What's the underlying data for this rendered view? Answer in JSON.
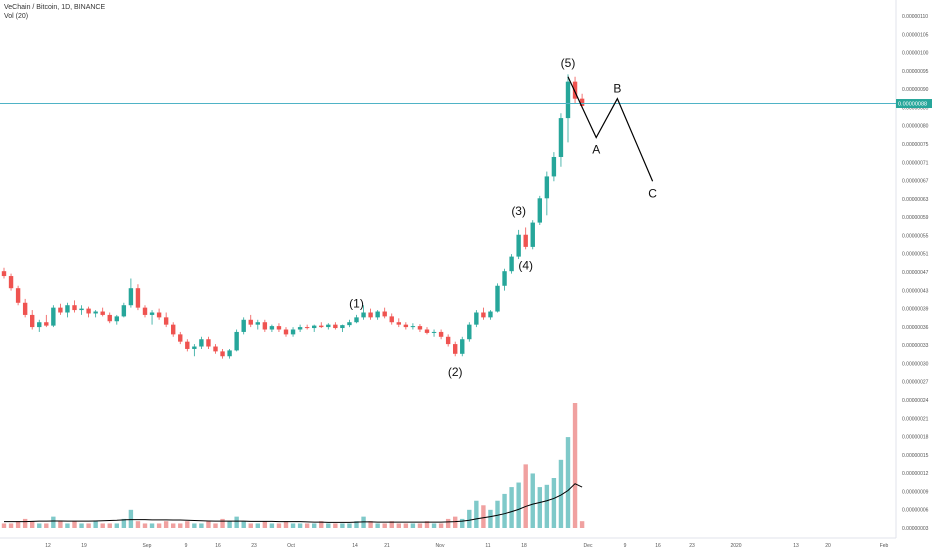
{
  "header": {
    "symbol_line": "VeChain / Bitcoin, 1D, BINANCE",
    "volume_line": "Vol (20)"
  },
  "colors": {
    "up": "#26a69a",
    "down": "#ef5350",
    "up_volume": "#7fc9c9",
    "down_volume": "#f0a1a0",
    "price_line": "#4fb3c6",
    "price_tag": "#26a69a",
    "wave_line": "#000000"
  },
  "chart_data": {
    "type": "candlestick",
    "price_axis": {
      "min": 3.3e-08,
      "max": 1.1e-07,
      "ticks": [
        "0.00000110",
        "0.00000105",
        "0.00000100",
        "0.00000095",
        "0.00000090",
        "0.00000085",
        "0.00000080",
        "0.00000075",
        "0.00000071",
        "0.00000067",
        "0.00000063",
        "0.00000059",
        "0.00000055",
        "0.00000051",
        "0.00000047",
        "0.00000043",
        "0.00000039",
        "0.00000036",
        "0.00000033",
        "0.00000030",
        "0.00000027",
        "0.00000024",
        "0.00000021",
        "0.00000018",
        "0.00000015",
        "0.00000012",
        "0.00000009",
        "0.00000006",
        "0.00000003"
      ]
    },
    "current_price": "0.00000088",
    "x_ticks": [
      "12",
      "19",
      "Sep",
      "9",
      "16",
      "23",
      "Oct",
      "14",
      "21",
      "Nov",
      "11",
      "18",
      "Dec",
      "9",
      "16",
      "23",
      "2020",
      "13",
      "20",
      "Feb"
    ],
    "candles": [
      [
        53.5,
        54.2,
        52.0,
        52.5
      ],
      [
        52.5,
        53.0,
        49.5,
        50.0
      ],
      [
        50.0,
        50.5,
        46.5,
        47.0
      ],
      [
        47.0,
        47.8,
        44.0,
        44.5
      ],
      [
        44.5,
        45.5,
        41.5,
        42.0
      ],
      [
        42.0,
        43.5,
        41.0,
        43.0
      ],
      [
        43.0,
        44.5,
        42.0,
        42.3
      ],
      [
        42.3,
        46.5,
        42.0,
        46.0
      ],
      [
        46.0,
        46.8,
        44.5,
        45.0
      ],
      [
        45.0,
        47.0,
        44.0,
        46.5
      ],
      [
        46.5,
        47.5,
        45.0,
        45.5
      ],
      [
        45.5,
        46.5,
        44.5,
        45.8
      ],
      [
        45.8,
        46.2,
        44.0,
        44.8
      ],
      [
        44.8,
        45.5,
        44.0,
        45.2
      ],
      [
        45.2,
        46.0,
        44.2,
        44.5
      ],
      [
        44.5,
        45.0,
        42.8,
        43.2
      ],
      [
        43.2,
        44.5,
        42.5,
        44.2
      ],
      [
        44.2,
        47.0,
        44.0,
        46.5
      ],
      [
        46.5,
        52.0,
        46.0,
        50.0
      ],
      [
        50.0,
        50.8,
        45.5,
        46.0
      ],
      [
        46.0,
        46.5,
        44.0,
        44.5
      ],
      [
        44.5,
        45.5,
        42.5,
        45.0
      ],
      [
        45.0,
        45.8,
        43.5,
        44.0
      ],
      [
        44.0,
        45.0,
        42.0,
        42.5
      ],
      [
        42.5,
        43.0,
        40.0,
        40.5
      ],
      [
        40.5,
        41.0,
        38.5,
        39.0
      ],
      [
        39.0,
        39.5,
        37.0,
        37.5
      ],
      [
        37.5,
        38.5,
        36.0,
        38.0
      ],
      [
        38.0,
        40.0,
        37.5,
        39.5
      ],
      [
        39.5,
        40.0,
        37.5,
        38.0
      ],
      [
        38.0,
        38.5,
        36.5,
        37.0
      ],
      [
        37.0,
        37.5,
        35.5,
        36.0
      ],
      [
        36.0,
        37.5,
        35.5,
        37.2
      ],
      [
        37.2,
        41.5,
        37.0,
        41.0
      ],
      [
        41.0,
        44.0,
        40.5,
        43.5
      ],
      [
        43.5,
        44.5,
        42.0,
        42.5
      ],
      [
        42.5,
        43.5,
        41.5,
        43.0
      ],
      [
        43.0,
        43.5,
        41.0,
        41.5
      ],
      [
        41.5,
        42.5,
        41.0,
        42.2
      ],
      [
        42.2,
        42.8,
        41.0,
        41.5
      ],
      [
        41.5,
        42.0,
        40.0,
        40.5
      ],
      [
        40.5,
        42.0,
        40.0,
        41.5
      ],
      [
        41.5,
        42.5,
        41.0,
        42.0
      ],
      [
        42.0,
        42.5,
        41.5,
        41.8
      ],
      [
        41.8,
        42.5,
        41.0,
        42.3
      ],
      [
        42.3,
        43.0,
        41.8,
        42.0
      ],
      [
        42.0,
        42.8,
        41.5,
        42.5
      ],
      [
        42.5,
        43.0,
        41.5,
        41.8
      ],
      [
        41.8,
        42.5,
        41.0,
        42.4
      ],
      [
        42.4,
        43.5,
        42.0,
        43.0
      ],
      [
        43.0,
        44.5,
        42.8,
        44.0
      ],
      [
        44.0,
        46.5,
        43.5,
        45.0
      ],
      [
        45.0,
        45.8,
        43.5,
        44.0
      ],
      [
        44.0,
        45.5,
        43.5,
        45.2
      ],
      [
        45.2,
        46.0,
        43.8,
        44.2
      ],
      [
        44.2,
        44.8,
        42.5,
        43.0
      ],
      [
        43.0,
        43.8,
        42.0,
        42.5
      ],
      [
        42.5,
        43.0,
        41.5,
        42.0
      ],
      [
        42.0,
        42.8,
        41.5,
        42.2
      ],
      [
        42.2,
        42.6,
        41.0,
        41.5
      ],
      [
        41.5,
        42.0,
        40.5,
        40.8
      ],
      [
        40.8,
        41.5,
        40.0,
        41.0
      ],
      [
        41.0,
        41.5,
        39.5,
        40.0
      ],
      [
        40.0,
        40.5,
        38.0,
        38.5
      ],
      [
        38.5,
        39.0,
        36.0,
        36.5
      ],
      [
        36.5,
        40.0,
        36.0,
        39.5
      ],
      [
        39.5,
        43.0,
        39.0,
        42.5
      ],
      [
        42.5,
        45.5,
        42.0,
        45.0
      ],
      [
        45.0,
        46.0,
        43.5,
        44.0
      ],
      [
        44.0,
        45.5,
        43.5,
        45.2
      ],
      [
        45.2,
        51.0,
        45.0,
        50.5
      ],
      [
        50.5,
        54.0,
        49.5,
        53.5
      ],
      [
        53.5,
        57.0,
        53.0,
        56.5
      ],
      [
        56.5,
        62.0,
        56.0,
        61.0
      ],
      [
        61.0,
        62.5,
        58.0,
        58.5
      ],
      [
        58.5,
        64.0,
        58.0,
        63.5
      ],
      [
        63.5,
        69.0,
        63.0,
        68.5
      ],
      [
        68.5,
        74.0,
        65.0,
        73.0
      ],
      [
        73.0,
        78.0,
        72.0,
        77.0
      ],
      [
        77.0,
        86.0,
        75.0,
        85.0
      ],
      [
        85.0,
        94.0,
        80.0,
        92.5
      ],
      [
        92.5,
        93.5,
        88.0,
        89.0
      ],
      [
        89.0,
        90.0,
        87.0,
        87.5
      ]
    ],
    "volume": [
      2,
      2,
      3,
      4,
      3,
      2,
      2,
      5,
      3,
      2,
      3,
      2,
      2,
      3,
      2,
      2,
      2,
      4,
      8,
      3,
      2,
      2,
      2,
      3,
      2,
      2,
      3,
      2,
      2,
      3,
      2,
      4,
      3,
      5,
      3,
      2,
      2,
      3,
      2,
      2,
      3,
      2,
      2,
      2,
      2,
      3,
      2,
      2,
      2,
      2,
      3,
      5,
      3,
      2,
      2,
      3,
      2,
      2,
      2,
      2,
      3,
      2,
      2,
      4,
      5,
      4,
      8,
      12,
      10,
      8,
      12,
      15,
      18,
      20,
      28,
      24,
      18,
      19,
      22,
      30,
      40,
      55,
      3
    ],
    "volume_ma": [
      2.8,
      2.8,
      2.8,
      2.8,
      2.9,
      3.0,
      3.0,
      3.1,
      3.1,
      3.0,
      3.0,
      3.0,
      3.0,
      3.1,
      3.2,
      3.3,
      3.4,
      3.6,
      3.7,
      3.7,
      3.7,
      3.6,
      3.6,
      3.6,
      3.5,
      3.5,
      3.4,
      3.3,
      3.2,
      3.1,
      3.0,
      3.0,
      3.0,
      3.0,
      3.0,
      2.9,
      2.9,
      2.9,
      2.9,
      2.8,
      2.8,
      2.8,
      2.8,
      2.7,
      2.6,
      2.6,
      2.5,
      2.5,
      2.5,
      2.5,
      2.6,
      2.7,
      2.7,
      2.6,
      2.6,
      2.6,
      2.6,
      2.6,
      2.6,
      2.6,
      2.6,
      2.6,
      2.6,
      2.7,
      2.8,
      3.0,
      3.4,
      4.0,
      4.5,
      5.0,
      5.6,
      6.3,
      7.2,
      8.2,
      9.5,
      10.5,
      11.2,
      12.0,
      13.0,
      14.5,
      16.5,
      19.5,
      18.0
    ],
    "volume_max": 55,
    "waves": [
      {
        "label": "(1)",
        "index": 50,
        "price": 44.0,
        "pos": "above"
      },
      {
        "label": "(2)",
        "index": 64,
        "price": 36.0,
        "pos": "below"
      },
      {
        "label": "(3)",
        "index": 73,
        "price": 63.0,
        "pos": "above"
      },
      {
        "label": "(4)",
        "index": 74,
        "price": 58.0,
        "pos": "below"
      },
      {
        "label": "(5)",
        "index": 80,
        "price": 93.5,
        "pos": "above"
      }
    ],
    "abc_path": {
      "points": [
        {
          "index": 80,
          "price": 93.5
        },
        {
          "index": 84,
          "price": 81.0
        },
        {
          "index": 87,
          "price": 89.0
        },
        {
          "index": 92,
          "price": 72.0
        }
      ],
      "labels": [
        "A",
        "B",
        "C"
      ]
    }
  }
}
